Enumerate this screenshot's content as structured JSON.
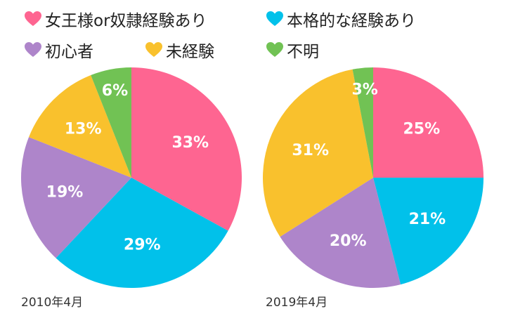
{
  "legend": {
    "items": [
      {
        "label": "女王様or奴隷経験あり",
        "icon": "heart-icon",
        "color": "#fe6591"
      },
      {
        "label": "本格的な経験あり",
        "icon": "heart-icon",
        "color": "#01c1ea"
      },
      {
        "label": "初心者",
        "icon": "heart-icon",
        "color": "#ae85ca"
      },
      {
        "label": "未経験",
        "icon": "heart-icon",
        "color": "#f9c12d"
      },
      {
        "label": "不明",
        "icon": "heart-icon",
        "color": "#71c254"
      }
    ]
  },
  "chart_data": [
    {
      "type": "pie",
      "title": "2010年4月",
      "categories": [
        "女王様or奴隷経験あり",
        "本格的な経験あり",
        "初心者",
        "未経験",
        "不明"
      ],
      "values": [
        33,
        29,
        19,
        13,
        6
      ],
      "labels": [
        "33%",
        "29%",
        "19%",
        "13%",
        "6%"
      ],
      "colors": [
        "#fe6591",
        "#01c1ea",
        "#ae85ca",
        "#f9c12d",
        "#71c254"
      ],
      "start": "top",
      "direction": "clockwise"
    },
    {
      "type": "pie",
      "title": "2019年4月",
      "categories": [
        "女王様or奴隷経験あり",
        "本格的な経験あり",
        "初心者",
        "未経験",
        "不明"
      ],
      "values": [
        25,
        21,
        20,
        31,
        3
      ],
      "labels": [
        "25%",
        "21%",
        "20%",
        "31%",
        "3%"
      ],
      "colors": [
        "#fe6591",
        "#01c1ea",
        "#ae85ca",
        "#f9c12d",
        "#71c254"
      ],
      "start": "top",
      "direction": "clockwise"
    }
  ]
}
